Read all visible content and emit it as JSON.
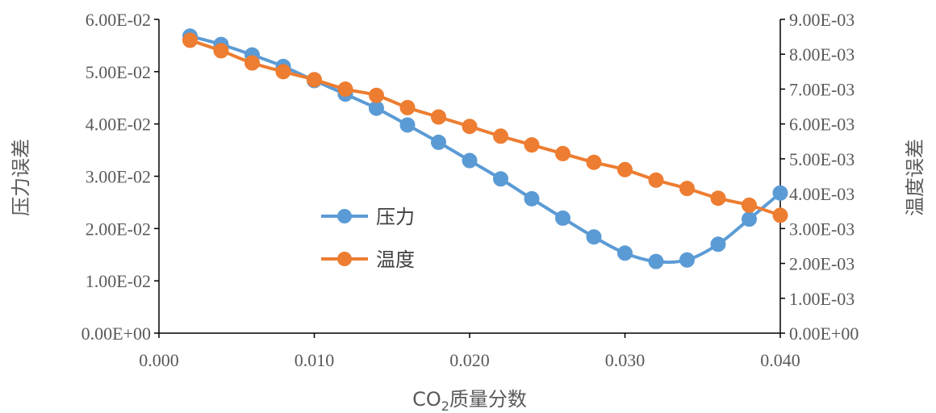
{
  "chart_data": {
    "type": "line",
    "x_axis": {
      "label_prefix": "CO",
      "label_subscript": "2",
      "label_suffix": "质量分数",
      "min": 0.0,
      "max": 0.04,
      "ticks": [
        "0.000",
        "0.010",
        "0.020",
        "0.030",
        "0.040"
      ]
    },
    "y_axis_left": {
      "label": "压力误差",
      "min": 0.0,
      "max": 0.06,
      "ticks": [
        "0.00E+00",
        "1.00E-02",
        "2.00E-02",
        "3.00E-02",
        "4.00E-02",
        "5.00E-02",
        "6.00E-02"
      ]
    },
    "y_axis_right": {
      "label": "温度误差",
      "min": 0.0,
      "max": 0.009,
      "ticks": [
        "0.00E+00",
        "1.00E-03",
        "2.00E-03",
        "3.00E-03",
        "4.00E-03",
        "5.00E-03",
        "6.00E-03",
        "7.00E-03",
        "8.00E-03",
        "9.00E-03"
      ]
    },
    "x": [
      0.002,
      0.004,
      0.006,
      0.008,
      0.01,
      0.012,
      0.014,
      0.016,
      0.018,
      0.02,
      0.022,
      0.024,
      0.026,
      0.028,
      0.03,
      0.032,
      0.034,
      0.036,
      0.038,
      0.04
    ],
    "series": [
      {
        "name": "压力",
        "axis": "left",
        "color": "#5B9BD5",
        "values": [
          0.0568,
          0.0552,
          0.0532,
          0.051,
          0.0483,
          0.0457,
          0.043,
          0.0398,
          0.0365,
          0.033,
          0.0295,
          0.0257,
          0.022,
          0.0184,
          0.0153,
          0.0137,
          0.014,
          0.017,
          0.0218,
          0.0268
        ]
      },
      {
        "name": "温度",
        "axis": "right",
        "color": "#ED7D31",
        "values": [
          0.0084,
          0.0081,
          0.00775,
          0.0075,
          0.00727,
          0.007,
          0.00682,
          0.00647,
          0.0062,
          0.00593,
          0.00565,
          0.0054,
          0.00515,
          0.0049,
          0.00469,
          0.00439,
          0.00415,
          0.00387,
          0.00367,
          0.00338
        ]
      }
    ],
    "legend_position": "center-left"
  }
}
